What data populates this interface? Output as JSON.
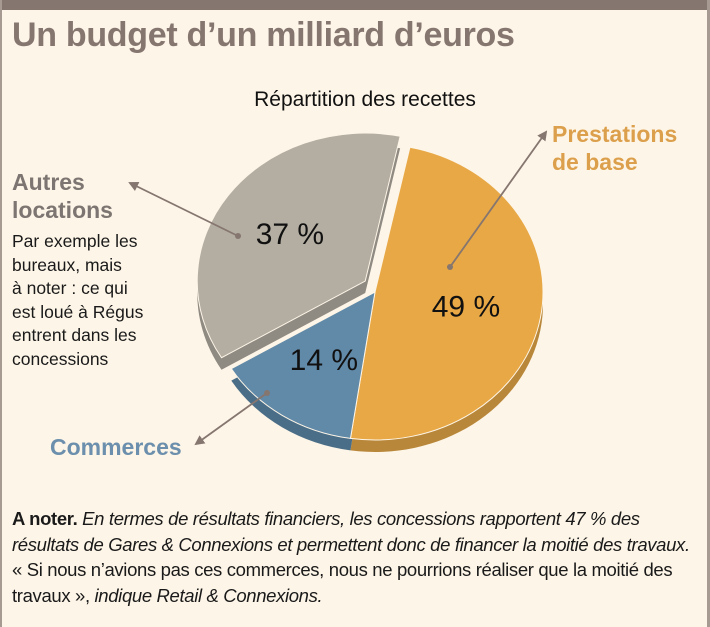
{
  "title": "Un budget d’un milliard d’euros",
  "chart_data": {
    "type": "pie",
    "title": "Répartition des recettes",
    "slices": [
      {
        "name": "Prestations de base",
        "value": 49,
        "label": "49 %",
        "color": "#e8a845",
        "side_color": "#b9873a"
      },
      {
        "name": "Commerces",
        "value": 14,
        "label": "14 %",
        "color": "#6189a8",
        "side_color": "#4b6e88"
      },
      {
        "name": "Autres locations",
        "value": 37,
        "label": "37 %",
        "color": "#b4aea2",
        "side_color": "#8f8a82",
        "exploded": true
      }
    ],
    "unit": "%"
  },
  "labels": {
    "autres_title_1": "Autres",
    "autres_title_2": "locations",
    "autres_desc": [
      "Par exemple les",
      "bureaux, mais",
      "à noter : ce qui",
      "est loué à Régus",
      "entrent dans les",
      "concessions"
    ],
    "prestations_1": "Prestations",
    "prestations_2": "de base",
    "commerces": "Commerces"
  },
  "note": {
    "lead": "A noter.",
    "italic1": " En termes de résultats financiers, les concessions rapportent 47 % des résultats de Gares & Connexions et permettent donc de financer la moitié des travaux.",
    "quote": " « Si nous n’avions pas ces commerces, nous ne pourrions réaliser que la moitié des travaux »,",
    "italic2": " indique Retail & Connexions."
  },
  "colors": {
    "frame": "#85766f",
    "background": "#fdf5e7",
    "arrow": "#85766f"
  }
}
